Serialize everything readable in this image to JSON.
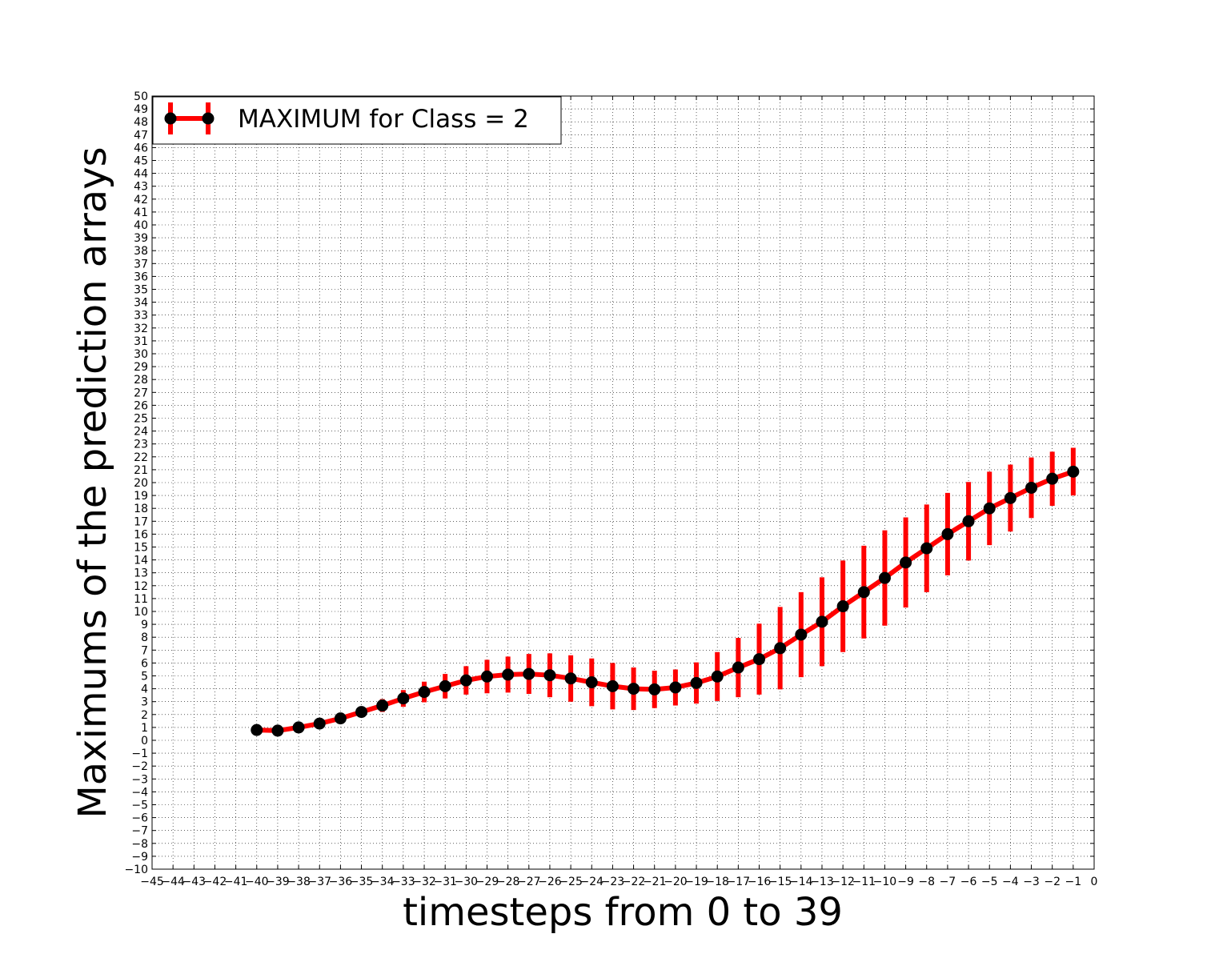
{
  "chart_data": {
    "type": "line",
    "title": "",
    "xlabel": "timesteps from 0 to 39",
    "ylabel": "Maximums of the prediction arrays",
    "xlim": [
      -45,
      0
    ],
    "ylim": [
      -10,
      50
    ],
    "grid": true,
    "legend_position": "top-left",
    "x_ticks": [
      -45,
      -44,
      -43,
      -42,
      -41,
      -40,
      -39,
      -38,
      -37,
      -36,
      -35,
      -34,
      -33,
      -32,
      -31,
      -30,
      -29,
      -28,
      -27,
      -26,
      -25,
      -24,
      -23,
      -22,
      -21,
      -20,
      -19,
      -18,
      -17,
      -16,
      -15,
      -14,
      -13,
      -12,
      -11,
      -10,
      -9,
      -8,
      -7,
      -6,
      -5,
      -4,
      -3,
      -2,
      -1,
      0
    ],
    "y_ticks": [
      -10,
      -9,
      -8,
      -7,
      -6,
      -5,
      -4,
      -3,
      -2,
      -1,
      0,
      1,
      2,
      3,
      4,
      5,
      6,
      7,
      8,
      9,
      10,
      11,
      12,
      13,
      14,
      15,
      16,
      17,
      18,
      19,
      20,
      21,
      22,
      23,
      24,
      25,
      26,
      27,
      28,
      29,
      30,
      31,
      32,
      33,
      34,
      35,
      36,
      37,
      38,
      39,
      40,
      41,
      42,
      43,
      44,
      45,
      46,
      47,
      48,
      49,
      50
    ],
    "series": [
      {
        "name": "MAXIMUM for Class = 2",
        "line_color": "#ff0000",
        "marker_color": "#000000",
        "x": [
          -40,
          -39,
          -38,
          -37,
          -36,
          -35,
          -34,
          -33,
          -32,
          -31,
          -30,
          -29,
          -28,
          -27,
          -26,
          -25,
          -24,
          -23,
          -22,
          -21,
          -20,
          -19,
          -18,
          -17,
          -16,
          -15,
          -14,
          -13,
          -12,
          -11,
          -10,
          -9,
          -8,
          -7,
          -6,
          -5,
          -4,
          -3,
          -2,
          -1
        ],
        "y": [
          0.8,
          0.75,
          1.0,
          1.3,
          1.7,
          2.2,
          2.7,
          3.25,
          3.75,
          4.2,
          4.65,
          4.95,
          5.1,
          5.15,
          5.05,
          4.8,
          4.5,
          4.2,
          4.0,
          3.95,
          4.1,
          4.45,
          4.95,
          5.65,
          6.3,
          7.15,
          8.2,
          9.2,
          10.4,
          11.5,
          12.6,
          13.8,
          14.9,
          16.0,
          17.0,
          18.0,
          18.8,
          19.6,
          20.3,
          20.85
        ],
        "err": [
          0.1,
          0.1,
          0.15,
          0.2,
          0.3,
          0.4,
          0.5,
          0.65,
          0.8,
          0.95,
          1.1,
          1.3,
          1.4,
          1.55,
          1.7,
          1.8,
          1.85,
          1.8,
          1.65,
          1.45,
          1.4,
          1.6,
          1.9,
          2.3,
          2.75,
          3.2,
          3.3,
          3.45,
          3.55,
          3.6,
          3.7,
          3.5,
          3.4,
          3.2,
          3.05,
          2.85,
          2.6,
          2.35,
          2.1,
          1.85
        ]
      }
    ]
  }
}
